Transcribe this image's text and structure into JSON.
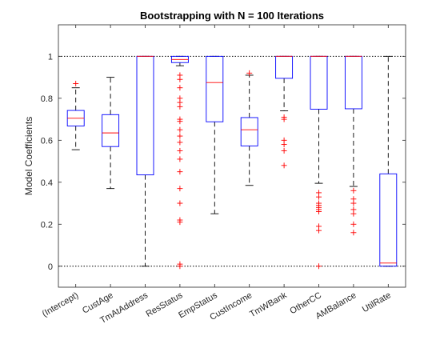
{
  "chart_data": {
    "type": "box",
    "title": "Bootstrapping with N = 100 Iterations",
    "ylabel": "Model Coefficients",
    "xlabel": "",
    "ylim": [
      -0.1,
      1.15
    ],
    "yticks": [
      0,
      0.2,
      0.4,
      0.6,
      0.8,
      1
    ],
    "ytick_labels": [
      "0",
      "0.2",
      "0.4",
      "0.6",
      "0.8",
      "1"
    ],
    "reference_lines": [
      0,
      1
    ],
    "grid": false,
    "colors": {
      "box": "#0000ff",
      "median": "#ff0000",
      "whisker": "#000000",
      "outlier": "#ff0000",
      "axis": "#262626"
    },
    "categories": [
      "(Intercept)",
      "CustAge",
      "TmAtAddress",
      "ResStatus",
      "EmpStatus",
      "CustIncome",
      "TmWBank",
      "OtherCC",
      "AMBalance",
      "UtilRate"
    ],
    "boxes": [
      {
        "whisker_low": 0.555,
        "q1": 0.668,
        "median": 0.705,
        "q3": 0.742,
        "whisker_high": 0.85,
        "outliers": [
          0.87
        ]
      },
      {
        "whisker_low": 0.37,
        "q1": 0.57,
        "median": 0.635,
        "q3": 0.722,
        "whisker_high": 0.9,
        "outliers": []
      },
      {
        "whisker_low": 0.0,
        "q1": 0.435,
        "median": 1.0,
        "q3": 1.0,
        "whisker_high": 1.0,
        "outliers": []
      },
      {
        "whisker_low": 0.955,
        "q1": 0.97,
        "median": 0.985,
        "q3": 1.0,
        "whisker_high": 1.0,
        "outliers": [
          0.91,
          0.89,
          0.85,
          0.8,
          0.78,
          0.76,
          0.7,
          0.69,
          0.65,
          0.62,
          0.59,
          0.55,
          0.51,
          0.45,
          0.37,
          0.3,
          0.22,
          0.21,
          0.01,
          0.0
        ]
      },
      {
        "whisker_low": 0.25,
        "q1": 0.688,
        "median": 0.875,
        "q3": 1.0,
        "whisker_high": 1.0,
        "outliers": []
      },
      {
        "whisker_low": 0.385,
        "q1": 0.573,
        "median": 0.65,
        "q3": 0.708,
        "whisker_high": 0.91,
        "outliers": [
          0.92
        ]
      },
      {
        "whisker_low": 0.74,
        "q1": 0.895,
        "median": 1.0,
        "q3": 1.0,
        "whisker_high": 1.0,
        "outliers": [
          0.71,
          0.7,
          0.6,
          0.58,
          0.55,
          0.48
        ]
      },
      {
        "whisker_low": 0.395,
        "q1": 0.748,
        "median": 1.0,
        "q3": 1.0,
        "whisker_high": 1.0,
        "outliers": [
          0.35,
          0.33,
          0.3,
          0.29,
          0.28,
          0.27,
          0.26,
          0.19,
          0.17,
          0.0
        ]
      },
      {
        "whisker_low": 0.38,
        "q1": 0.75,
        "median": 1.0,
        "q3": 1.0,
        "whisker_high": 1.0,
        "outliers": [
          0.36,
          0.32,
          0.3,
          0.27,
          0.25,
          0.2,
          0.16
        ]
      },
      {
        "whisker_low": 0.0,
        "q1": 0.0,
        "median": 0.015,
        "q3": 0.44,
        "whisker_high": 1.0,
        "outliers": []
      }
    ]
  }
}
